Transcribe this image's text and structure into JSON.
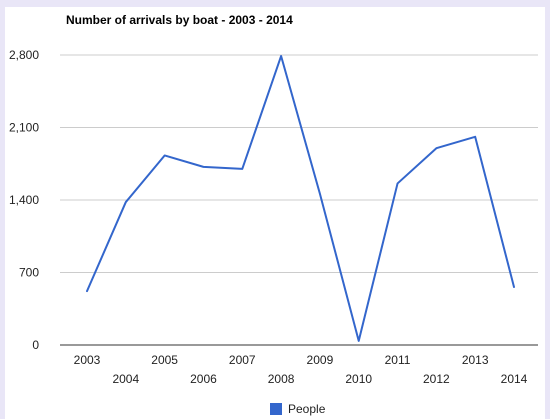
{
  "chart_data": {
    "type": "line",
    "title": "Number of arrivals by boat - 2003 - 2014",
    "xlabel": "",
    "ylabel": "",
    "categories": [
      "2003",
      "2004",
      "2005",
      "2006",
      "2007",
      "2008",
      "2009",
      "2010",
      "2011",
      "2012",
      "2013",
      "2014"
    ],
    "series": [
      {
        "name": "People",
        "values": [
          520,
          1380,
          1830,
          1720,
          1700,
          2790,
          1460,
          40,
          1560,
          1900,
          2010,
          560
        ],
        "color": "#3366cc"
      }
    ],
    "ylim": [
      0,
      2800
    ],
    "yticks": [
      0,
      700,
      1400,
      2100,
      2800
    ],
    "ytick_labels": [
      "0",
      "700",
      "1,400",
      "2,100",
      "2,800"
    ],
    "grid": true,
    "legend_position": "bottom"
  }
}
